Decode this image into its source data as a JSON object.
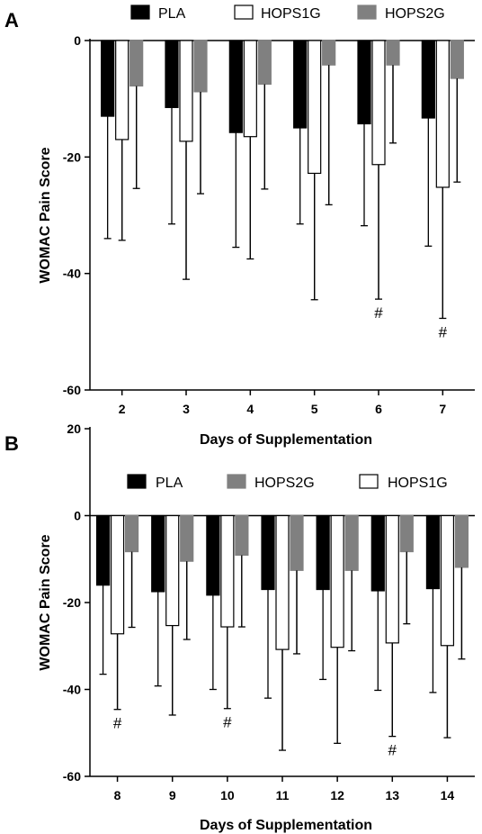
{
  "chart_data": [
    {
      "type": "bar",
      "panel_label": "A",
      "categories": [
        "2",
        "3",
        "4",
        "5",
        "6",
        "7"
      ],
      "xlabel": "Days of Supplementation",
      "ylabel": "WOMAC  Pain Score",
      "ylim": [
        -60,
        0
      ],
      "yticks": [
        -60,
        -40,
        -20,
        0
      ],
      "grid": false,
      "series": [
        {
          "name": "PLA",
          "color": "#000000",
          "values": [
            -13.0,
            -11.5,
            -15.8,
            -15.0,
            -14.3,
            -13.3
          ],
          "error": [
            21.0,
            20.0,
            19.7,
            16.5,
            17.5,
            22.0
          ]
        },
        {
          "name": "HOPS1G",
          "color": "#ffffff",
          "values": [
            -17.0,
            -17.3,
            -16.5,
            -22.8,
            -21.3,
            -25.2
          ],
          "error": [
            17.3,
            23.7,
            21.0,
            21.7,
            23.1,
            22.5
          ]
        },
        {
          "name": "HOPS2G",
          "color": "#808080",
          "values": [
            -7.8,
            -8.8,
            -7.5,
            -4.2,
            -4.2,
            -6.5
          ],
          "error": [
            17.6,
            17.5,
            18.0,
            24.0,
            13.4,
            17.8
          ]
        }
      ],
      "legend_order": [
        "PLA",
        "HOPS1G",
        "HOPS2G"
      ],
      "annotations": [
        {
          "category": "6",
          "series": "HOPS1G",
          "text": "#"
        },
        {
          "category": "7",
          "series": "HOPS1G",
          "text": "#"
        }
      ]
    },
    {
      "type": "bar",
      "panel_label": "B",
      "categories": [
        "8",
        "9",
        "10",
        "11",
        "12",
        "13",
        "14"
      ],
      "xlabel": "Days of Supplementation",
      "ylabel": "WOMAC  Pain Score",
      "ylim": [
        -60,
        20
      ],
      "yticks": [
        -60,
        -40,
        -20,
        0,
        20
      ],
      "grid": false,
      "series": [
        {
          "name": "PLA",
          "color": "#000000",
          "values": [
            -16.0,
            -17.5,
            -18.3,
            -17.0,
            -17.0,
            -17.3,
            -16.8
          ],
          "error": [
            20.5,
            21.7,
            21.7,
            25.0,
            20.7,
            22.9,
            23.9
          ]
        },
        {
          "name": "HOPS1G",
          "color": "#ffffff",
          "values": [
            -27.2,
            -25.3,
            -25.6,
            -30.8,
            -30.3,
            -29.3,
            -29.9
          ],
          "error": [
            17.4,
            20.6,
            18.8,
            23.2,
            22.1,
            21.5,
            21.2
          ]
        },
        {
          "name": "HOPS2G",
          "color": "#808080",
          "values": [
            -8.3,
            -10.5,
            -9.1,
            -12.6,
            -12.6,
            -8.3,
            -11.9
          ],
          "error": [
            17.4,
            18.0,
            16.5,
            19.2,
            18.5,
            16.6,
            21.1
          ]
        }
      ],
      "legend_order": [
        "PLA",
        "HOPS2G",
        "HOPS1G"
      ],
      "annotations": [
        {
          "category": "8",
          "series": "HOPS1G",
          "text": "#"
        },
        {
          "category": "10",
          "series": "HOPS1G",
          "text": "#"
        },
        {
          "category": "13",
          "series": "HOPS1G",
          "text": "#"
        }
      ]
    }
  ]
}
